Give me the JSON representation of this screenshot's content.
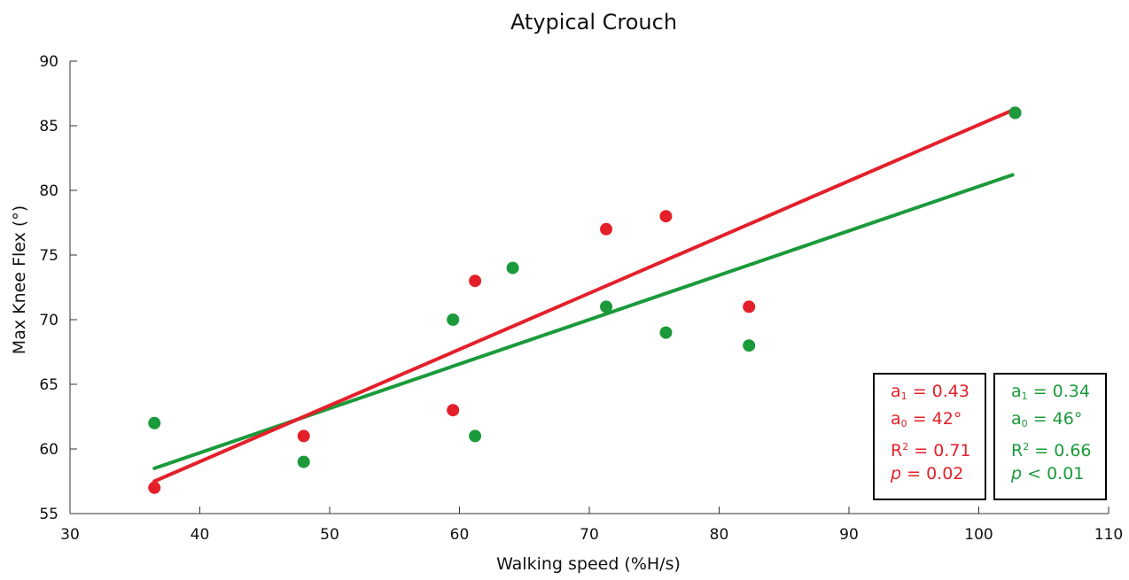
{
  "chart_data": {
    "type": "scatter",
    "title": "Atypical Crouch",
    "xlabel": "Walking speed (%H/s)",
    "ylabel": "Max Knee Flex (°)",
    "xlim": [
      30,
      110
    ],
    "ylim": [
      55,
      90
    ],
    "xticks": [
      30,
      40,
      50,
      60,
      70,
      80,
      90,
      100,
      110
    ],
    "yticks": [
      55,
      60,
      65,
      70,
      75,
      80,
      85,
      90
    ],
    "grid": false,
    "series": [
      {
        "color": "#e3202a",
        "points": [
          [
            36.5,
            57
          ],
          [
            48,
            61
          ],
          [
            59.5,
            63
          ],
          [
            61.2,
            73
          ],
          [
            71.3,
            77
          ],
          [
            75.9,
            78
          ],
          [
            82.3,
            71
          ],
          [
            102.8,
            86
          ]
        ],
        "fit": {
          "x": [
            36.5,
            102.6
          ],
          "y": [
            57.5,
            86.2
          ]
        },
        "stats": {
          "a1": "0.43",
          "a0": "42°",
          "r2": "0.71",
          "p_op": "=",
          "p": "0.02"
        }
      },
      {
        "color": "#1a9a3a",
        "points": [
          [
            36.5,
            62
          ],
          [
            48,
            59
          ],
          [
            59.5,
            70
          ],
          [
            61.2,
            61
          ],
          [
            64.1,
            74
          ],
          [
            71.3,
            71
          ],
          [
            75.9,
            69
          ],
          [
            82.3,
            68
          ],
          [
            102.8,
            86
          ]
        ],
        "fit": {
          "x": [
            36.5,
            102.6
          ],
          "y": [
            58.5,
            81.2
          ]
        },
        "stats": {
          "a1": "0.34",
          "a0": "46°",
          "r2": "0.66",
          "p_op": "<",
          "p": "0.01"
        }
      }
    ]
  }
}
